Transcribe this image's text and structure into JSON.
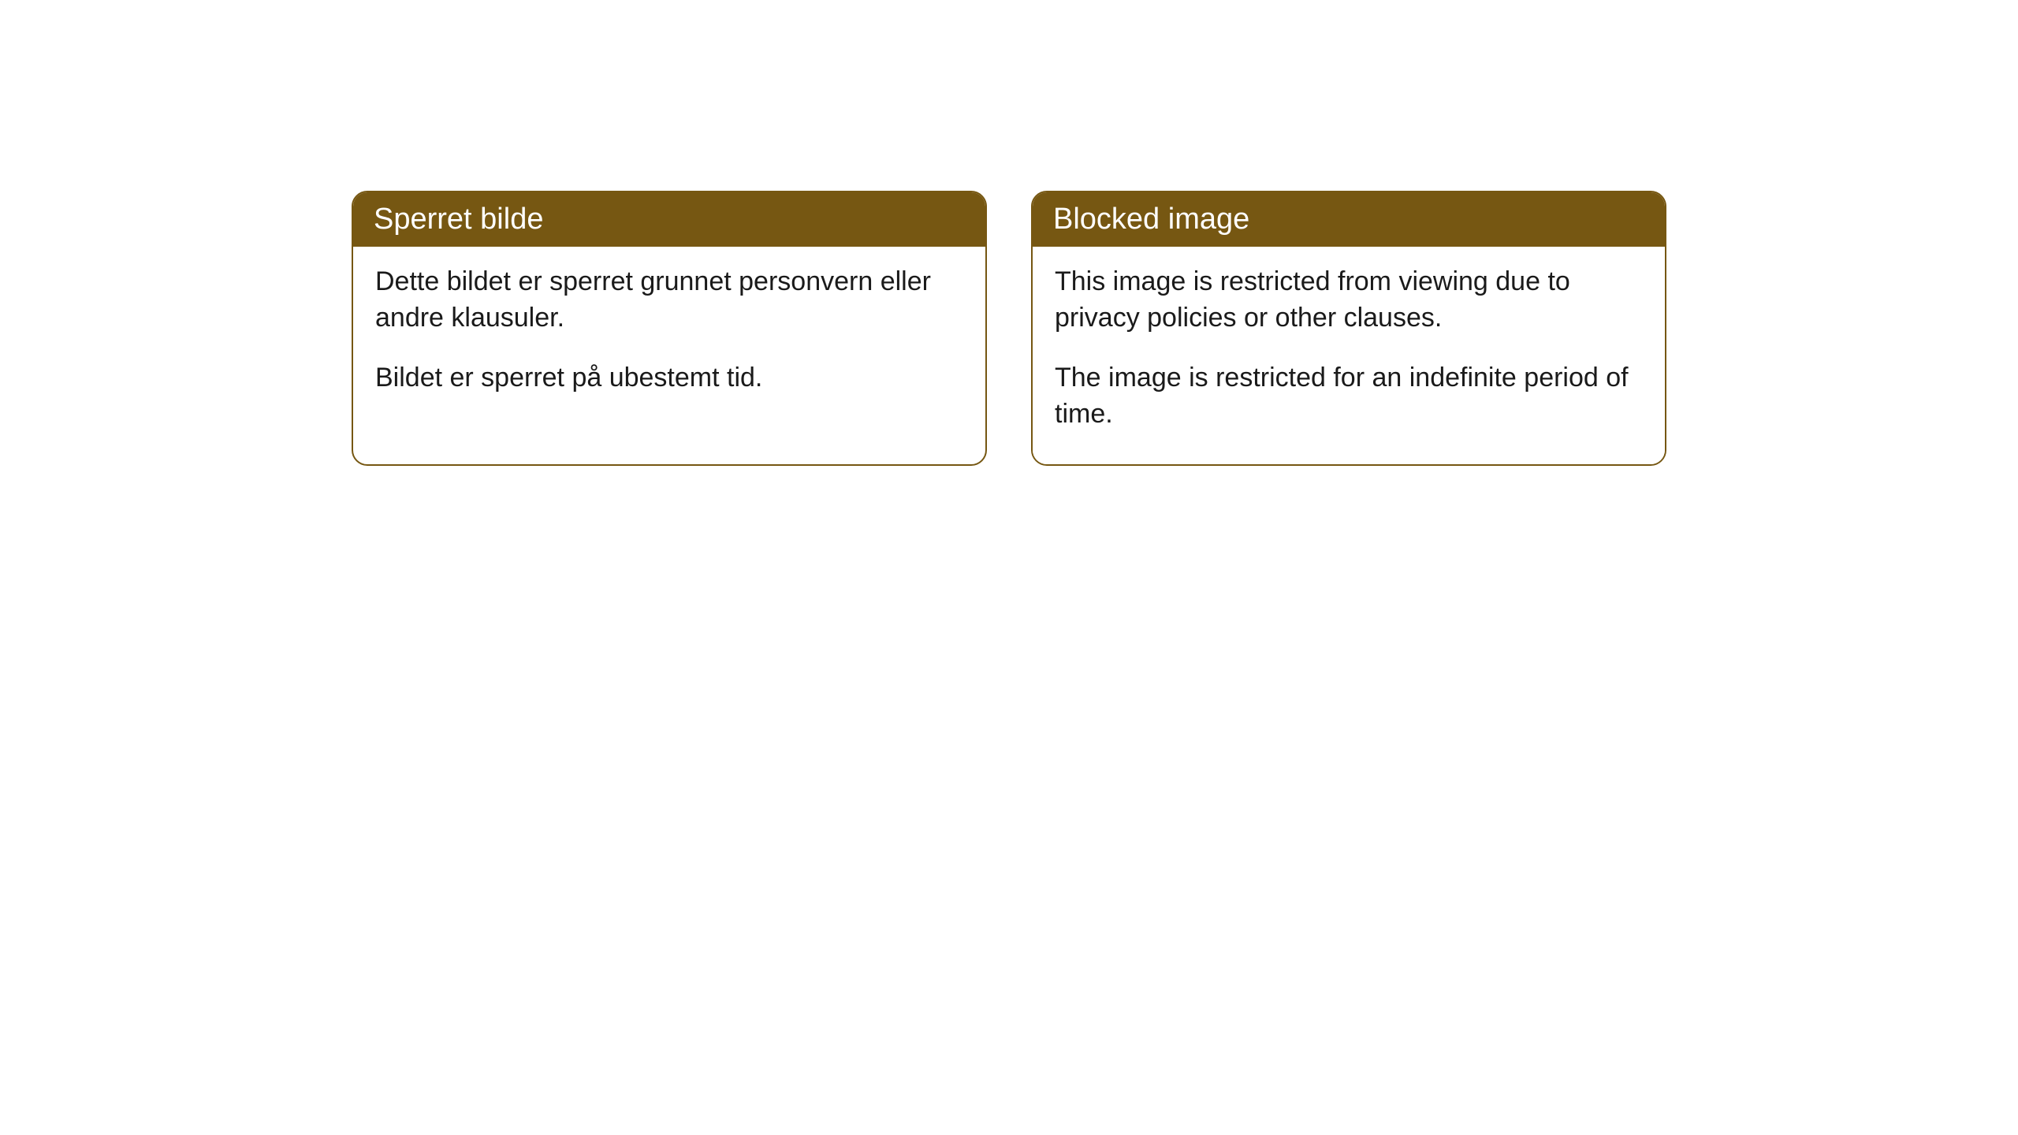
{
  "cards": {
    "left": {
      "title": "Sperret bilde",
      "para1": "Dette bildet er sperret grunnet personvern eller andre klausuler.",
      "para2": "Bildet er sperret på ubestemt tid."
    },
    "right": {
      "title": "Blocked image",
      "para1": "This image is restricted from viewing due to privacy policies or other clauses.",
      "para2": "The image is restricted for an indefinite period of time."
    }
  },
  "style": {
    "header_bg": "#765712",
    "header_color": "#ffffff",
    "border_color": "#765712",
    "body_bg": "#ffffff",
    "text_color": "#1a1a1a",
    "border_radius": 20,
    "header_fontsize": 38,
    "body_fontsize": 34
  }
}
